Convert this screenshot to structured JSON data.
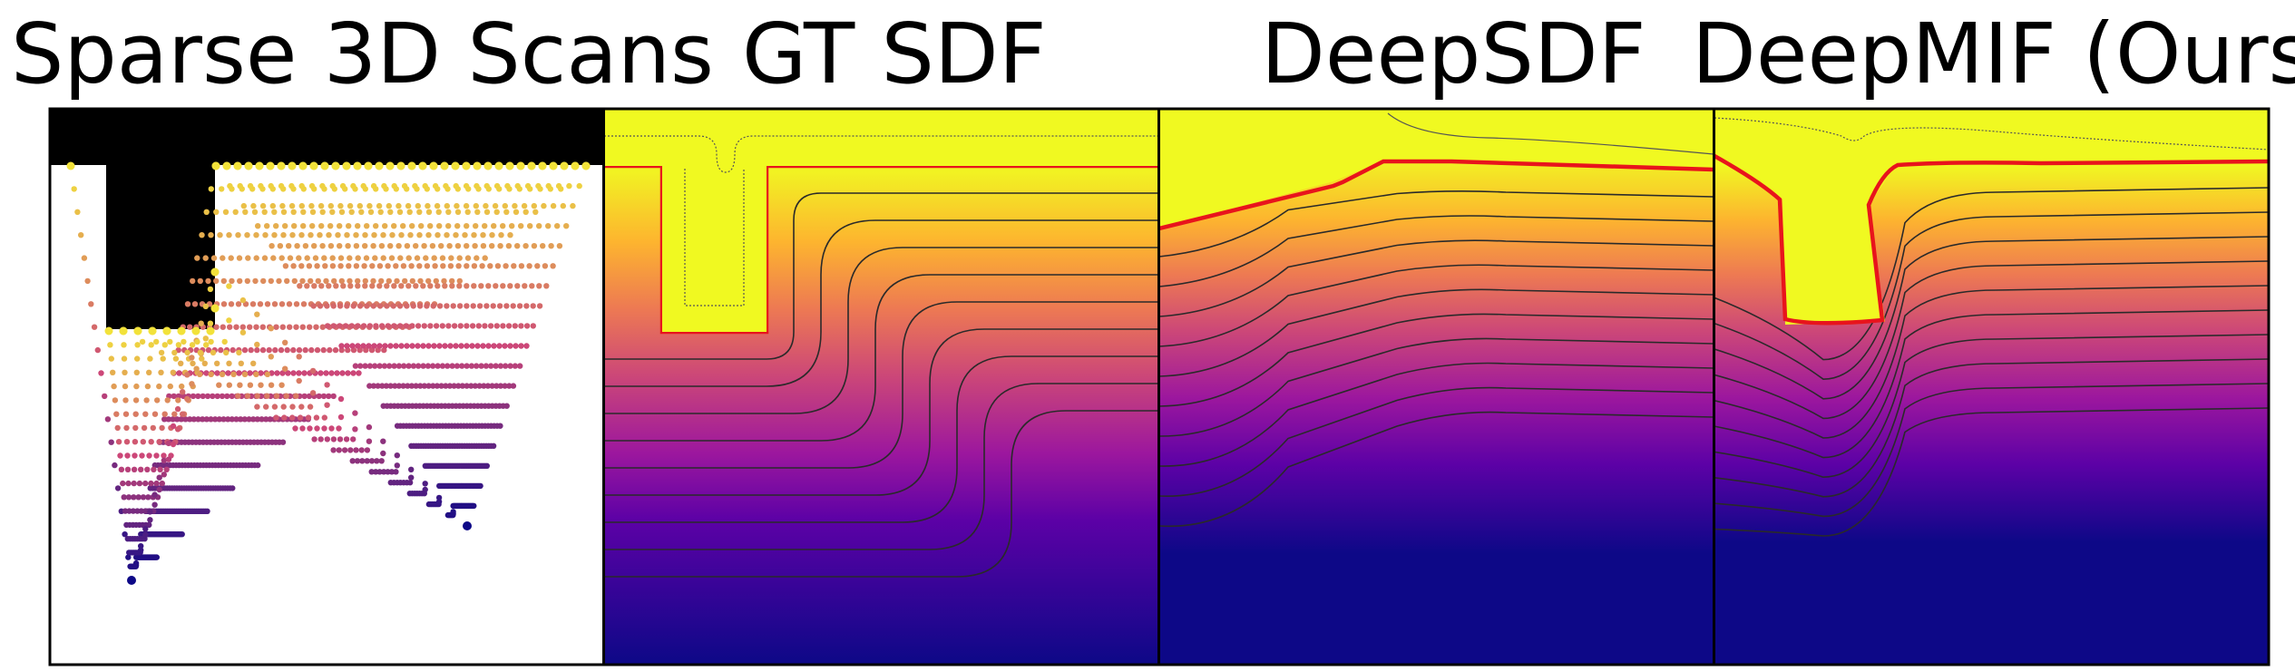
{
  "panels": [
    {
      "title": "Sparse 3D Scans"
    },
    {
      "title": "GT SDF"
    },
    {
      "title": "DeepSDF"
    },
    {
      "title": "DeepMIF (Ours)"
    }
  ],
  "colors": {
    "colormap": [
      "#0d0887",
      "#5c01a6",
      "#9c179e",
      "#cc4778",
      "#ed7953",
      "#fdb42f",
      "#f0f921"
    ],
    "zero_level_set": "#e8141c",
    "contour": "#2a2a2a",
    "occupied": "#000000",
    "ray_near_surface": "#f2e23a",
    "ray_near_sensor": "#0d0887"
  }
}
